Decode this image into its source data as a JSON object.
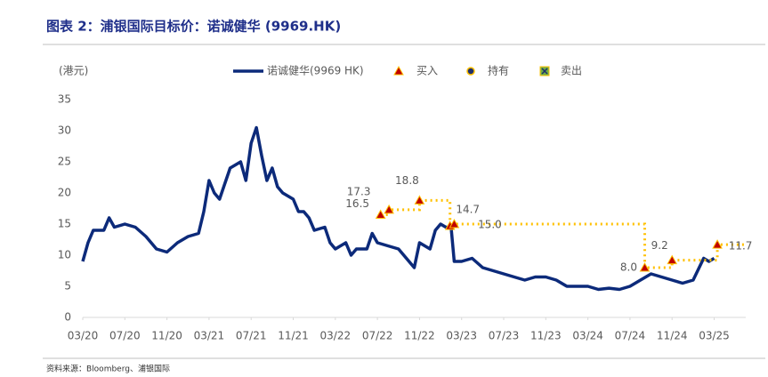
{
  "chart_data": {
    "type": "line",
    "title": "图表 2：浦银国际目标价：诺诚健华 (9969.HK)",
    "y_label": "(港元)",
    "source": "资料来源：Bloomberg、浦银国际",
    "xlim": [
      0,
      63
    ],
    "xticks": [
      {
        "value": 0,
        "label": "03/20"
      },
      {
        "value": 4,
        "label": "07/20"
      },
      {
        "value": 8,
        "label": "11/20"
      },
      {
        "value": 12,
        "label": "03/21"
      },
      {
        "value": 16,
        "label": "07/21"
      },
      {
        "value": 20,
        "label": "11/21"
      },
      {
        "value": 24,
        "label": "03/22"
      },
      {
        "value": 28,
        "label": "07/22"
      },
      {
        "value": 32,
        "label": "11/22"
      },
      {
        "value": 36,
        "label": "03/23"
      },
      {
        "value": 40,
        "label": "07/23"
      },
      {
        "value": 44,
        "label": "11/23"
      },
      {
        "value": 48,
        "label": "03/24"
      },
      {
        "value": 52,
        "label": "07/24"
      },
      {
        "value": 56,
        "label": "11/24"
      },
      {
        "value": 60,
        "label": "03/25"
      }
    ],
    "ylim": [
      0,
      35
    ],
    "yticks": [
      0,
      5,
      10,
      15,
      20,
      25,
      30,
      35
    ],
    "grid": false,
    "series": [
      {
        "name": "诺诚健华(9969 HK)",
        "color": "#0c2a7a",
        "x": [
          0,
          0.5,
          1,
          2,
          2.5,
          3,
          4,
          5,
          6,
          7,
          8,
          9,
          10,
          11,
          11.5,
          12,
          12.5,
          13,
          14,
          15,
          15.5,
          16,
          16.5,
          17,
          17.5,
          18,
          18.5,
          19,
          20,
          20.5,
          21,
          21.5,
          22,
          23,
          23.5,
          24,
          25,
          25.5,
          26,
          27,
          27.5,
          28,
          29,
          30,
          31,
          31.5,
          32,
          33,
          33.5,
          34,
          34.5,
          35,
          35.3,
          36,
          37,
          38,
          39,
          40,
          41,
          42,
          43,
          44,
          45,
          46,
          47,
          48,
          49,
          50,
          51,
          52,
          53,
          54,
          55,
          56,
          57,
          58,
          59,
          59.5,
          60
        ],
        "values": [
          9,
          12,
          14,
          14,
          16,
          14.5,
          15,
          14.5,
          13,
          11,
          10.5,
          12,
          13,
          13.5,
          17,
          22,
          20,
          19,
          24,
          25,
          22,
          28,
          30.5,
          26,
          22,
          24,
          21,
          20,
          19,
          17,
          17,
          16,
          14,
          14.5,
          12,
          11,
          12,
          10,
          11,
          11,
          13.5,
          12,
          11.5,
          11,
          9,
          8,
          12,
          11,
          14,
          15,
          14.5,
          14.5,
          9,
          9,
          9.5,
          8,
          7.5,
          7,
          6.5,
          6,
          6.5,
          6.5,
          6,
          5,
          5,
          5,
          4.5,
          4.7,
          4.5,
          5,
          6,
          7,
          6.5,
          6,
          5.5,
          6,
          9.5,
          9,
          9.5
        ]
      },
      {
        "name": "买入",
        "color": "#c00000",
        "x": [
          28.3,
          29.1,
          32.0,
          34.9,
          35.3,
          53.4,
          56.0,
          60.3
        ],
        "values": [
          16.5,
          17.3,
          18.8,
          14.7,
          15.0,
          8.0,
          9.2,
          11.7
        ],
        "value_labels": [
          "16.5",
          "17.3",
          "18.8",
          "14.7",
          "15.0",
          "8.0",
          "9.2",
          "11.7"
        ]
      },
      {
        "name": "持有",
        "color": "#1f2f6a",
        "x": [],
        "values": []
      },
      {
        "name": "卖出",
        "color": "#70ad47",
        "x": [],
        "values": []
      }
    ],
    "target_line_color": "#ffc000"
  }
}
